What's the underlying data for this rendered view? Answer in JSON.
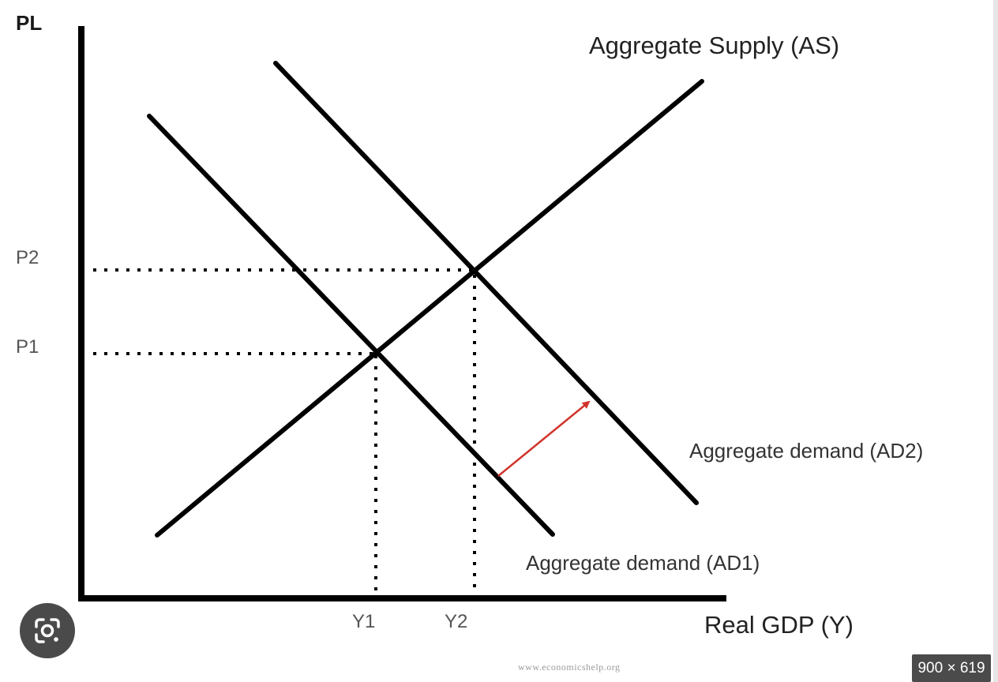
{
  "diagram": {
    "y_axis_label": "PL",
    "x_axis_label": "Real GDP (Y)",
    "as_label": "Aggregate Supply (AS)",
    "ad2_label": "Aggregate demand (AD2)",
    "ad1_label": "Aggregate demand (AD1)",
    "price_levels": [
      "P2",
      "P1"
    ],
    "outputs": [
      "Y1",
      "Y2"
    ],
    "shift_arrow_color": "#d0342c",
    "line_color": "#000000"
  },
  "watermark": "www.economicshelp.org",
  "overlay": {
    "lens_icon": "google-lens-icon",
    "size_badge": "900 × 619"
  }
}
